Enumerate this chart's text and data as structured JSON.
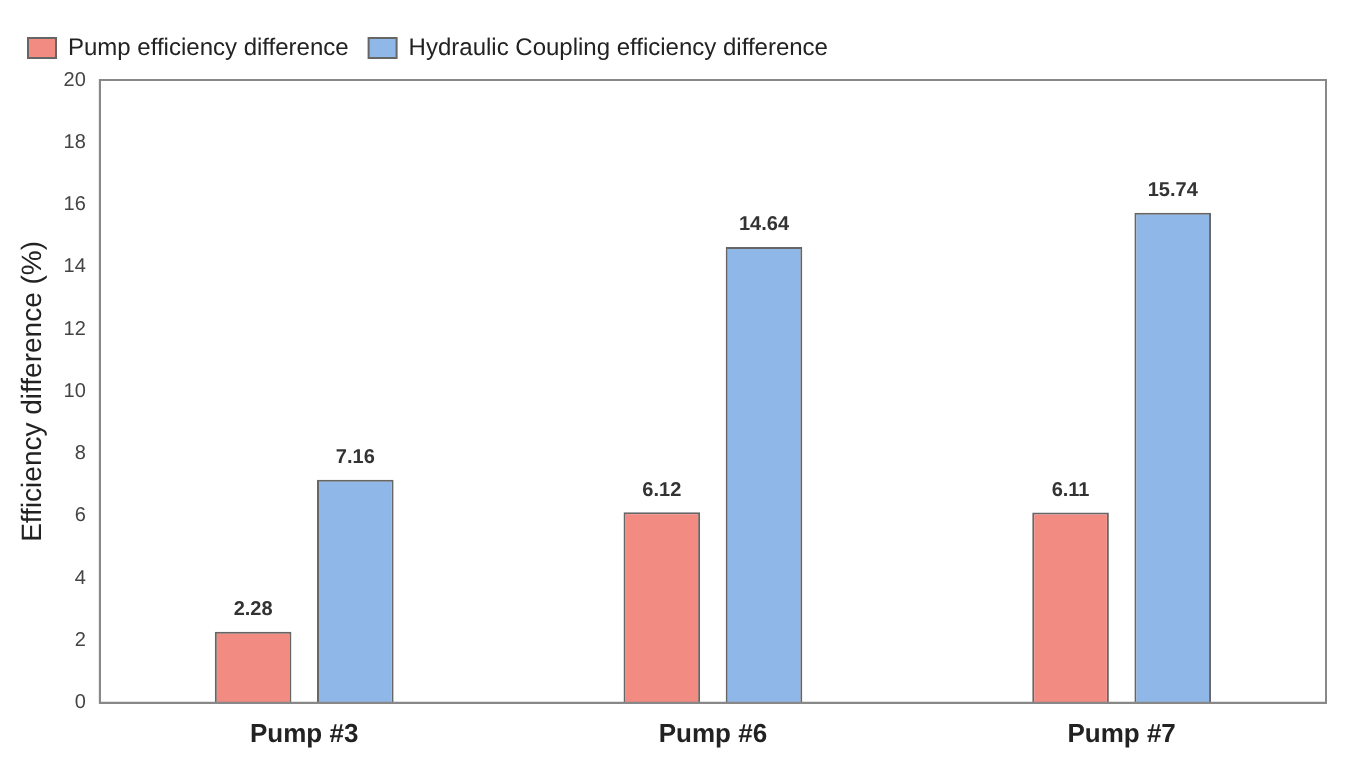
{
  "chart_data": {
    "type": "bar",
    "ylabel": "Efficiency difference (%)",
    "categories": [
      "Pump #3",
      "Pump #6",
      "Pump #7"
    ],
    "series": [
      {
        "name": "Pump efficiency difference",
        "color": "#f28b82",
        "values": [
          2.28,
          6.12,
          6.11
        ]
      },
      {
        "name": "Hydraulic Coupling efficiency difference",
        "color": "#8fb8e8",
        "values": [
          7.16,
          14.64,
          15.74
        ]
      }
    ],
    "ylim": [
      0,
      20
    ],
    "yticks": [
      0,
      2,
      4,
      6,
      8,
      10,
      12,
      14,
      16,
      18,
      20
    ],
    "grid": false,
    "legend": "top left",
    "data_labels": true
  }
}
